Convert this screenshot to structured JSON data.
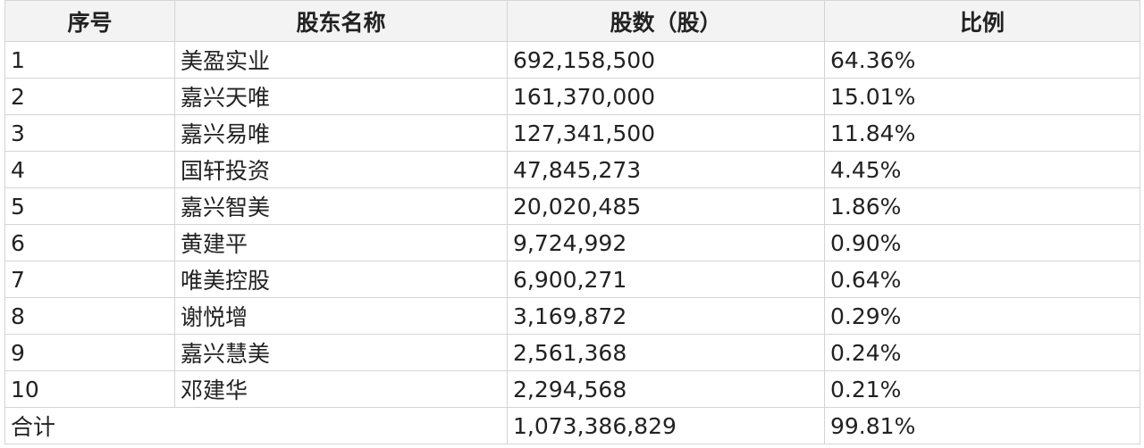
{
  "table": {
    "headers": [
      "序号",
      "股东名称",
      "股数（股）",
      "比例"
    ],
    "rows": [
      [
        "1",
        "美盈实业",
        "692,158,500",
        "64.36%"
      ],
      [
        "2",
        "嘉兴天唯",
        "161,370,000",
        "15.01%"
      ],
      [
        "3",
        "嘉兴易唯",
        "127,341,500",
        "11.84%"
      ],
      [
        "4",
        "国轩投资",
        "47,845,273",
        "4.45%"
      ],
      [
        "5",
        "嘉兴智美",
        "20,020,485",
        "1.86%"
      ],
      [
        "6",
        "黄建平",
        "9,724,992",
        "0.90%"
      ],
      [
        "7",
        "唯美控股",
        "6,900,271",
        "0.64%"
      ],
      [
        "8",
        "谢悦增",
        "3,169,872",
        "0.29%"
      ],
      [
        "9",
        "嘉兴慧美",
        "2,561,368",
        "0.24%"
      ],
      [
        "10",
        "邓建华",
        "2,294,568",
        "0.21%"
      ]
    ],
    "total": {
      "label": "合计",
      "shares": "1,073,386,829",
      "ratio": "99.81%"
    }
  }
}
